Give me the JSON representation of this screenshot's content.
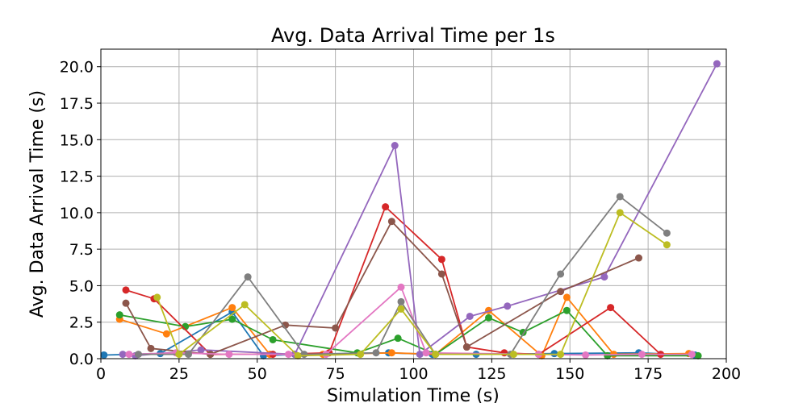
{
  "chart_data": {
    "type": "line",
    "title": "Avg. Data Arrival Time per 1s",
    "xlabel": "Simulation Time (s)",
    "ylabel": "Avg. Data Arrival Time (s)",
    "xlim": [
      0,
      200
    ],
    "ylim": [
      0,
      21.2
    ],
    "xticks": [
      0,
      25,
      50,
      75,
      100,
      125,
      150,
      175,
      200
    ],
    "yticks": [
      0.0,
      2.5,
      5.0,
      7.5,
      10.0,
      12.5,
      15.0,
      17.5,
      20.0
    ],
    "xtick_labels": [
      "0",
      "25",
      "50",
      "75",
      "100",
      "125",
      "150",
      "175",
      "200"
    ],
    "ytick_labels": [
      "0.0",
      "2.5",
      "5.0",
      "7.5",
      "10.0",
      "12.5",
      "15.0",
      "17.5",
      "20.0"
    ],
    "grid": true,
    "legend": false,
    "series": [
      {
        "color": "#1f77b4",
        "x": [
          1,
          19,
          42,
          52,
          62,
          92,
          106,
          120,
          145,
          172,
          190
        ],
        "y": [
          0.25,
          0.35,
          3.2,
          0.2,
          0.3,
          0.4,
          0.3,
          0.3,
          0.35,
          0.4,
          0.25
        ]
      },
      {
        "color": "#ff7f0e",
        "x": [
          6,
          21,
          42,
          54,
          71,
          93,
          107,
          124,
          141,
          149,
          164,
          188
        ],
        "y": [
          2.7,
          1.7,
          3.5,
          0.3,
          0.3,
          0.4,
          0.3,
          3.3,
          0.2,
          4.2,
          0.3,
          0.35
        ]
      },
      {
        "color": "#2ca02c",
        "x": [
          6,
          27,
          42,
          55,
          82,
          95,
          107,
          124,
          135,
          149,
          162,
          191
        ],
        "y": [
          3.0,
          2.2,
          2.7,
          1.3,
          0.4,
          1.4,
          0.3,
          2.8,
          1.8,
          3.3,
          0.2,
          0.2
        ]
      },
      {
        "color": "#d62728",
        "x": [
          8,
          17,
          35,
          55,
          73,
          91,
          109,
          117,
          129,
          140,
          163,
          179
        ],
        "y": [
          4.7,
          4.1,
          0.3,
          0.3,
          0.4,
          10.4,
          6.8,
          0.8,
          0.4,
          0.3,
          3.5,
          0.3
        ]
      },
      {
        "color": "#9467bd",
        "x": [
          7,
          11,
          32,
          62,
          94,
          102,
          118,
          130,
          161,
          197
        ],
        "y": [
          0.3,
          0.2,
          0.6,
          0.3,
          14.6,
          0.3,
          2.9,
          3.6,
          5.6,
          20.2
        ]
      },
      {
        "color": "#8c564b",
        "x": [
          8,
          16,
          35,
          59,
          75,
          93,
          109,
          117,
          147,
          172
        ],
        "y": [
          3.8,
          0.7,
          0.3,
          2.3,
          2.1,
          9.4,
          5.8,
          0.8,
          4.6,
          6.9
        ]
      },
      {
        "color": "#e377c2",
        "x": [
          9,
          24,
          41,
          60,
          72,
          96,
          104,
          140,
          155,
          173,
          189
        ],
        "y": [
          0.3,
          0.4,
          0.3,
          0.3,
          0.3,
          4.9,
          0.4,
          0.3,
          0.25,
          0.3,
          0.3
        ]
      },
      {
        "color": "#7f7f7f",
        "x": [
          12,
          28,
          47,
          65,
          88,
          96,
          107,
          131,
          147,
          166,
          181
        ],
        "y": [
          0.3,
          0.3,
          5.6,
          0.3,
          0.4,
          3.9,
          0.3,
          0.3,
          5.8,
          11.1,
          8.6
        ]
      },
      {
        "color": "#bcbd22",
        "x": [
          18,
          25,
          46,
          63,
          83,
          96,
          107,
          132,
          147,
          166,
          181
        ],
        "y": [
          4.2,
          0.3,
          3.7,
          0.2,
          0.3,
          3.4,
          0.3,
          0.3,
          0.3,
          10.0,
          7.8
        ]
      }
    ]
  }
}
